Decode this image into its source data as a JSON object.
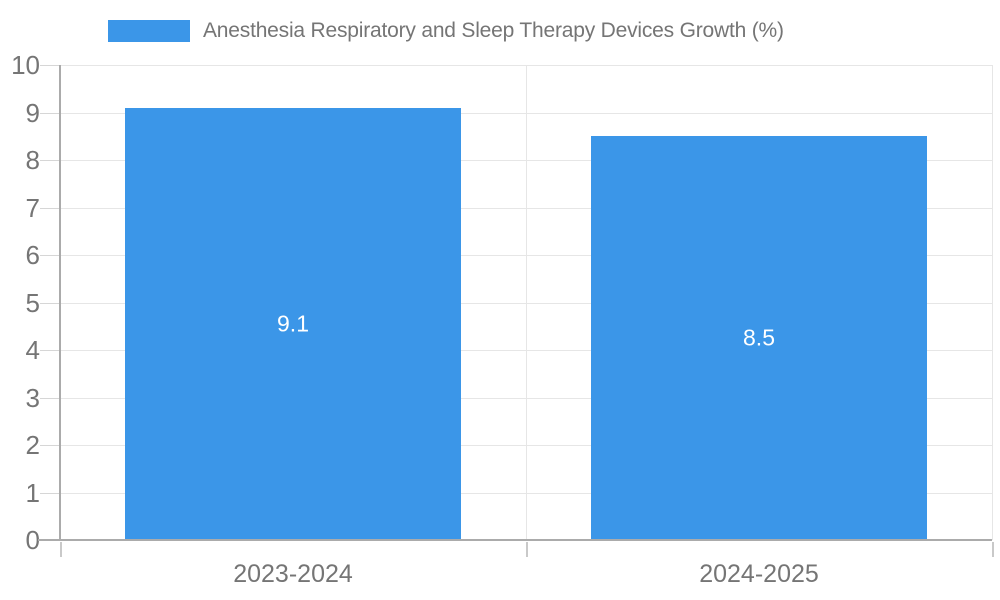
{
  "legend": {
    "label": "Anesthesia Respiratory and Sleep Therapy Devices Growth (%)",
    "position": "top"
  },
  "chart_data": {
    "type": "bar",
    "categories": [
      "2023-2024",
      "2024-2025"
    ],
    "values": [
      9.1,
      8.5
    ],
    "series_name": "Anesthesia Respiratory and Sleep Therapy Devices Growth (%)",
    "title": "",
    "xlabel": "",
    "ylabel": "",
    "ylim": [
      0,
      10
    ],
    "yticks": [
      0,
      1,
      2,
      3,
      4,
      5,
      6,
      7,
      8,
      9,
      10
    ],
    "grid": true,
    "legend_position": "top",
    "colors": {
      "bar": "#3b96e8",
      "gridline": "#e6e6e6",
      "axis_line": "#ababab",
      "tick_mark": "#d6d6d6",
      "axis_text": "#757575",
      "value_label_text": "#ffffff",
      "background": "#ffffff"
    }
  }
}
